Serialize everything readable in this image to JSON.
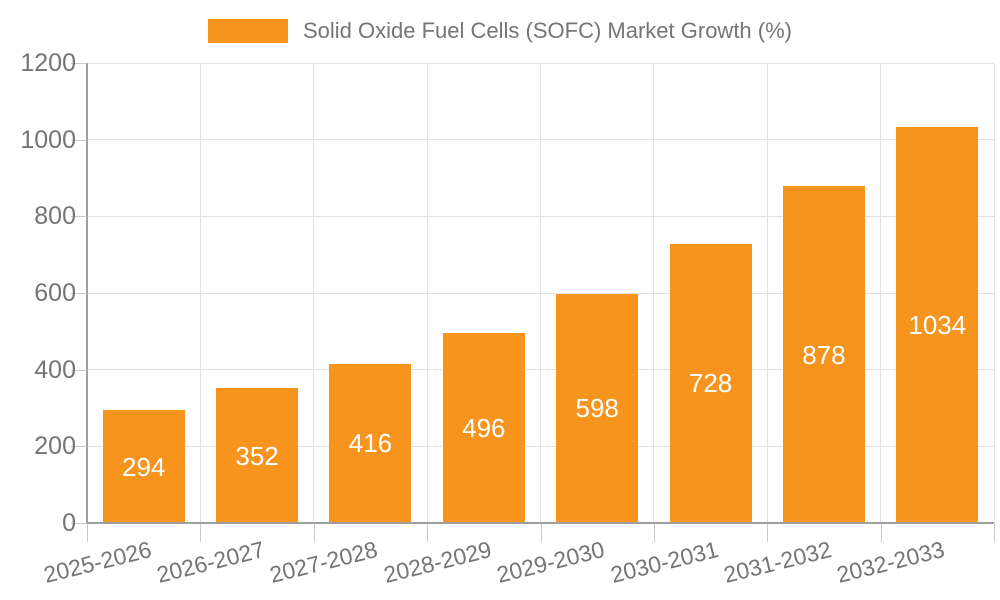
{
  "legend": {
    "label": "Solid Oxide Fuel Cells (SOFC) Market Growth (%)"
  },
  "chart_data": {
    "type": "bar",
    "title": "Solid Oxide Fuel Cells (SOFC) Market Growth (%)",
    "categories": [
      "2025-2026",
      "2026-2027",
      "2027-2028",
      "2028-2029",
      "2029-2030",
      "2030-2031",
      "2031-2032",
      "2032-2033"
    ],
    "values": [
      294,
      352,
      416,
      496,
      598,
      728,
      878,
      1034
    ],
    "xlabel": "",
    "ylabel": "",
    "ylim": [
      0,
      1200
    ],
    "yticks": [
      0,
      200,
      400,
      600,
      800,
      1000,
      1200
    ],
    "grid": true,
    "legend_position": "top",
    "x_label_rotation_deg": -14,
    "colors": {
      "bar": "#F7941E",
      "value_label": "#FFFFFF",
      "axis_text": "#757575",
      "grid_line": "#E2E2E2",
      "axis_line": "#9E9E9E",
      "tick": "#C9C9C9",
      "background": "#FFFFFF"
    }
  }
}
